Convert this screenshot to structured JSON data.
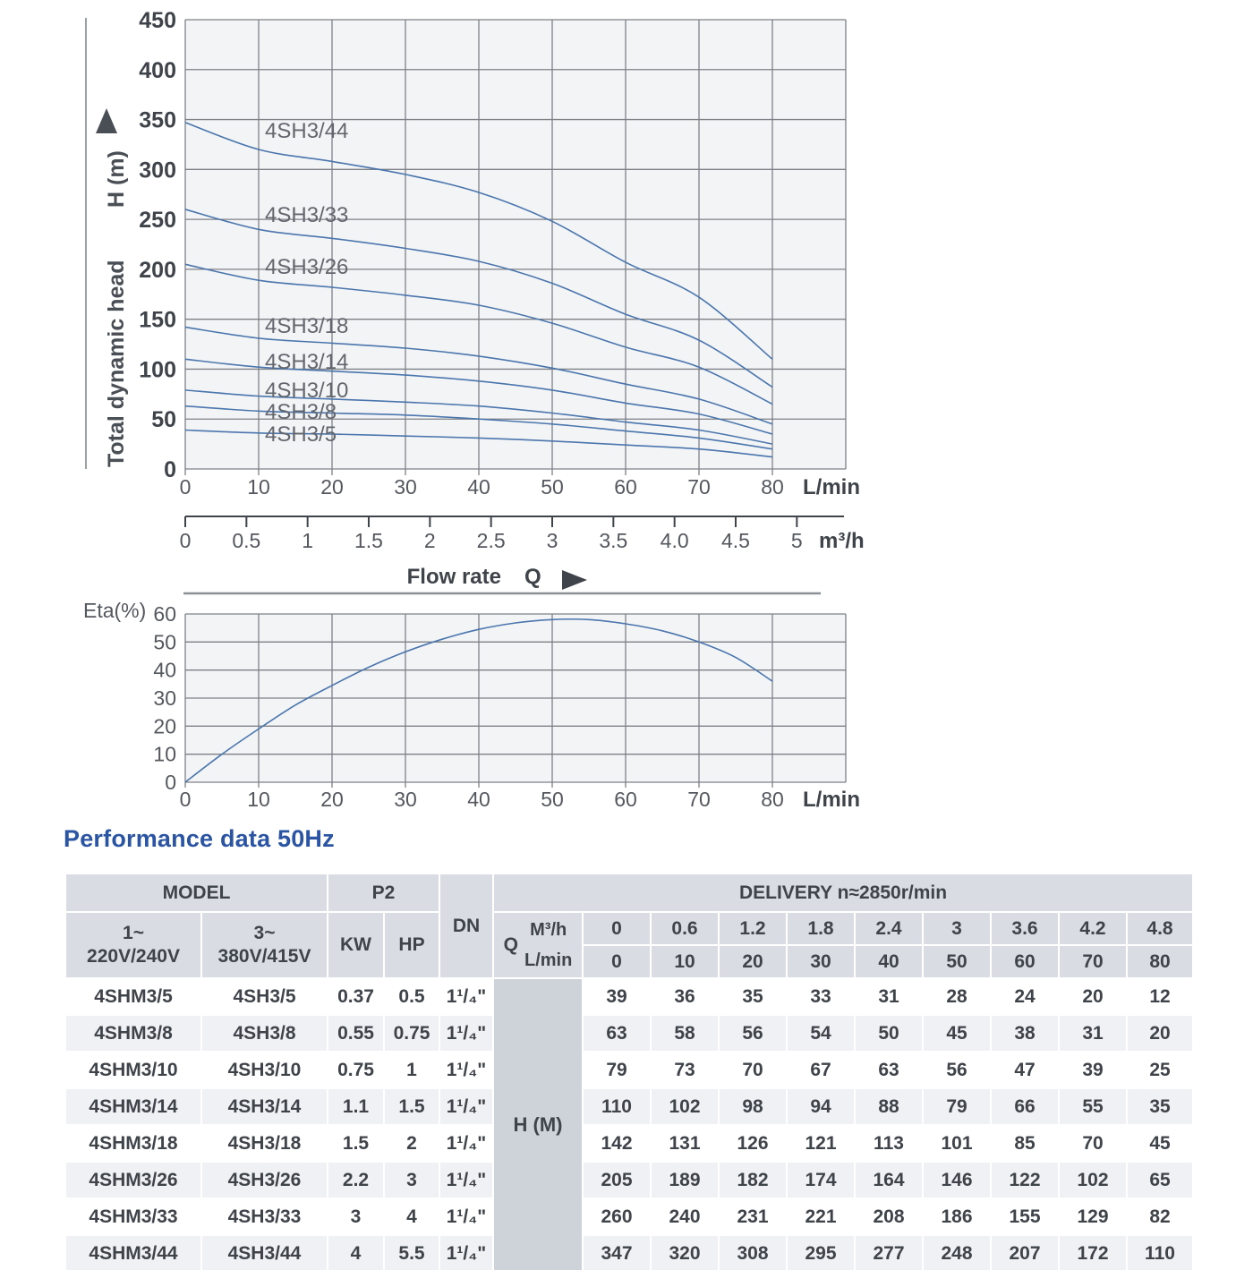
{
  "meta": {
    "accent_color": "#2b55a3",
    "curve_color": "#4a76ad",
    "grid_color": "#7d8186",
    "plot_bg": "#f3f4f6"
  },
  "chart_data": [
    {
      "type": "line",
      "title": "",
      "ylabel": "Total dynamic head",
      "ylabel2": "H (m)",
      "xlabel": "L/min",
      "ylim": [
        0,
        450
      ],
      "ytick_step": 50,
      "x": [
        0,
        10,
        20,
        30,
        40,
        50,
        60,
        70,
        80
      ],
      "series": [
        {
          "name": "4SH3/44",
          "values": [
            347,
            320,
            308,
            295,
            277,
            248,
            207,
            172,
            110
          ]
        },
        {
          "name": "4SH3/33",
          "values": [
            260,
            240,
            231,
            221,
            208,
            186,
            155,
            129,
            82
          ]
        },
        {
          "name": "4SH3/26",
          "values": [
            205,
            189,
            182,
            174,
            164,
            146,
            122,
            102,
            65
          ]
        },
        {
          "name": "4SH3/18",
          "values": [
            142,
            131,
            126,
            121,
            113,
            101,
            85,
            70,
            45
          ]
        },
        {
          "name": "4SH3/14",
          "values": [
            110,
            102,
            98,
            94,
            88,
            79,
            66,
            55,
            35
          ]
        },
        {
          "name": "4SH3/10",
          "values": [
            79,
            73,
            70,
            67,
            63,
            56,
            47,
            39,
            25
          ]
        },
        {
          "name": "4SH3/8",
          "values": [
            63,
            58,
            56,
            54,
            50,
            45,
            38,
            31,
            20
          ]
        },
        {
          "name": "4SH3/5",
          "values": [
            39,
            36,
            35,
            33,
            31,
            28,
            24,
            20,
            12
          ]
        }
      ],
      "secondary_axis": {
        "unit": "m³/h",
        "ticks": [
          "0",
          "0.5",
          "1",
          "1.5",
          "2",
          "2.5",
          "3",
          "3.5",
          "4.0",
          "4.5",
          "5"
        ],
        "lmin_per_unit": 16.6667
      },
      "flow_label": "Flow rate",
      "flow_q": "Q",
      "legend_position": "on-curve-labels",
      "grid": true
    },
    {
      "type": "line",
      "title": "",
      "ylabel": "Eta(%)",
      "xlabel": "L/min",
      "ylim": [
        0,
        60
      ],
      "ytick_step": 10,
      "xticks": [
        0,
        10,
        20,
        30,
        40,
        50,
        60,
        70,
        80
      ],
      "points": {
        "x": [
          0,
          5,
          10,
          15,
          20,
          25,
          30,
          35,
          40,
          45,
          50,
          55,
          60,
          65,
          70,
          75,
          80
        ],
        "y": [
          0,
          10,
          19,
          27.5,
          34.5,
          41,
          46.5,
          51,
          54.5,
          56.8,
          58,
          58,
          56.5,
          54,
          50,
          44.5,
          36
        ]
      },
      "grid": true
    }
  ],
  "table": {
    "title": "Performance data 50Hz",
    "h_unit": "H (M)",
    "header": {
      "model": "MODEL",
      "p2": "P2",
      "dn": "DN",
      "delivery": "DELIVERY  n≈2850r/min",
      "phase1_line1": "1~",
      "phase1_line2": "220V/240V",
      "phase3_line1": "3~",
      "phase3_line2": "380V/415V",
      "kw": "KW",
      "hp": "HP",
      "q": "Q",
      "m3h": "M³/h",
      "lmin": "L/min",
      "m3h_values": [
        "0",
        "0.6",
        "1.2",
        "1.8",
        "2.4",
        "3",
        "3.6",
        "4.2",
        "4.8"
      ],
      "lmin_values": [
        "0",
        "10",
        "20",
        "30",
        "40",
        "50",
        "60",
        "70",
        "80"
      ]
    },
    "rows": [
      {
        "model_1ph": "4SHM3/5",
        "model_3ph": "4SH3/5",
        "kw": "0.37",
        "hp": "0.5",
        "dn": "1¹/₄\"",
        "head": [
          "39",
          "36",
          "35",
          "33",
          "31",
          "28",
          "24",
          "20",
          "12"
        ]
      },
      {
        "model_1ph": "4SHM3/8",
        "model_3ph": "4SH3/8",
        "kw": "0.55",
        "hp": "0.75",
        "dn": "1¹/₄\"",
        "head": [
          "63",
          "58",
          "56",
          "54",
          "50",
          "45",
          "38",
          "31",
          "20"
        ]
      },
      {
        "model_1ph": "4SHM3/10",
        "model_3ph": "4SH3/10",
        "kw": "0.75",
        "hp": "1",
        "dn": "1¹/₄\"",
        "head": [
          "79",
          "73",
          "70",
          "67",
          "63",
          "56",
          "47",
          "39",
          "25"
        ]
      },
      {
        "model_1ph": "4SHM3/14",
        "model_3ph": "4SH3/14",
        "kw": "1.1",
        "hp": "1.5",
        "dn": "1¹/₄\"",
        "head": [
          "110",
          "102",
          "98",
          "94",
          "88",
          "79",
          "66",
          "55",
          "35"
        ]
      },
      {
        "model_1ph": "4SHM3/18",
        "model_3ph": "4SH3/18",
        "kw": "1.5",
        "hp": "2",
        "dn": "1¹/₄\"",
        "head": [
          "142",
          "131",
          "126",
          "121",
          "113",
          "101",
          "85",
          "70",
          "45"
        ]
      },
      {
        "model_1ph": "4SHM3/26",
        "model_3ph": "4SH3/26",
        "kw": "2.2",
        "hp": "3",
        "dn": "1¹/₄\"",
        "head": [
          "205",
          "189",
          "182",
          "174",
          "164",
          "146",
          "122",
          "102",
          "65"
        ]
      },
      {
        "model_1ph": "4SHM3/33",
        "model_3ph": "4SH3/33",
        "kw": "3",
        "hp": "4",
        "dn": "1¹/₄\"",
        "head": [
          "260",
          "240",
          "231",
          "221",
          "208",
          "186",
          "155",
          "129",
          "82"
        ]
      },
      {
        "model_1ph": "4SHM3/44",
        "model_3ph": "4SH3/44",
        "kw": "4",
        "hp": "5.5",
        "dn": "1¹/₄\"",
        "head": [
          "347",
          "320",
          "308",
          "295",
          "277",
          "248",
          "207",
          "172",
          "110"
        ]
      }
    ]
  }
}
